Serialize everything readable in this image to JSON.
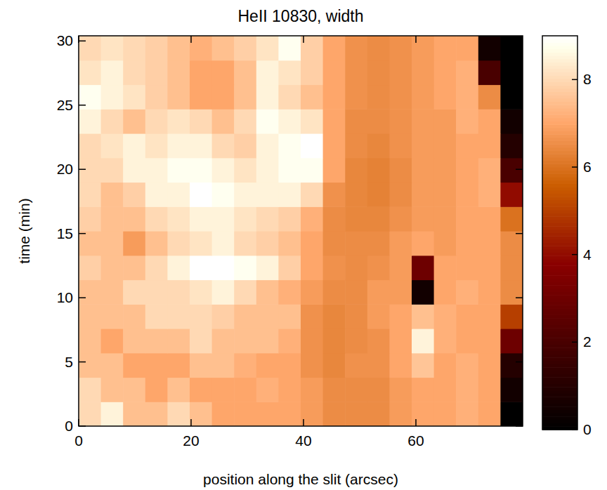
{
  "chart_data": {
    "type": "heatmap",
    "title": "HeII 10830, width",
    "x_label": "position along the slit (arcsec)",
    "y_label": "time (min)",
    "xlim": [
      0,
      79
    ],
    "ylim": [
      0,
      30.4
    ],
    "xticks": [
      0,
      20,
      40,
      60
    ],
    "yticks": [
      0,
      5,
      10,
      15,
      20,
      25,
      30
    ],
    "x_bins": [
      0,
      3.95,
      7.9,
      11.85,
      15.8,
      19.75,
      23.7,
      27.65,
      31.6,
      35.55,
      39.5,
      43.45,
      47.4,
      51.35,
      55.3,
      59.25,
      63.2,
      67.15,
      71.1,
      75.05,
      79
    ],
    "y_bins": [
      0,
      1.9,
      3.8,
      5.7,
      7.6,
      9.5,
      11.4,
      13.3,
      15.2,
      17.1,
      19,
      20.9,
      22.8,
      24.7,
      26.6,
      28.5,
      30.4
    ],
    "z": [
      [
        8,
        8.5,
        7.5,
        7.5,
        8,
        7.5,
        7,
        7,
        7,
        7,
        6.8,
        6.5,
        6.5,
        6.5,
        6.8,
        7,
        7,
        7.2,
        7,
        0
      ],
      [
        8,
        7.5,
        7.5,
        7,
        7.5,
        7,
        7,
        7,
        7.2,
        7,
        6.8,
        6.5,
        6.5,
        6.5,
        6.8,
        7,
        7,
        7.2,
        7,
        0.5
      ],
      [
        7.5,
        7.5,
        7,
        7,
        7,
        7.5,
        7.5,
        7.2,
        7,
        7,
        6.6,
        6.4,
        6.6,
        6.6,
        7,
        7.6,
        7,
        7.2,
        7,
        1
      ],
      [
        7.5,
        7,
        7.5,
        7.5,
        7.5,
        8,
        7.5,
        7.5,
        7.5,
        7.2,
        6.6,
        6.4,
        6.5,
        6.6,
        7,
        8.5,
        7.2,
        7,
        7,
        3
      ],
      [
        7.5,
        7.5,
        7.5,
        8,
        8,
        8,
        7.8,
        7.5,
        7.5,
        7.5,
        6.6,
        6.4,
        6.5,
        6.8,
        7,
        7.5,
        7.2,
        7,
        7,
        5
      ],
      [
        7.5,
        7.5,
        8,
        8,
        8,
        8.2,
        8.5,
        8,
        7.5,
        7.2,
        6.8,
        6.5,
        6.5,
        6.8,
        6.8,
        0.5,
        7,
        7.2,
        7,
        6.5
      ],
      [
        7.8,
        7.5,
        7.5,
        8,
        8.5,
        9,
        9,
        8.8,
        8.5,
        7.8,
        7,
        6.6,
        6.5,
        6.6,
        6.8,
        3,
        7,
        7,
        7,
        6.5
      ],
      [
        7.5,
        7.5,
        6.8,
        7.5,
        8,
        8.2,
        8.5,
        8,
        7.8,
        7.5,
        7,
        6.5,
        6.5,
        6.5,
        6.8,
        7,
        6.8,
        7,
        7,
        6.5
      ],
      [
        7.8,
        7.5,
        7.5,
        8,
        8.2,
        8.5,
        8.5,
        8.2,
        8,
        7.8,
        7.2,
        6.5,
        6.4,
        6.4,
        6.6,
        6.8,
        6.8,
        7,
        7,
        6
      ],
      [
        8,
        7.5,
        7.8,
        8.5,
        8.5,
        9,
        8.8,
        8.5,
        8.5,
        8.5,
        8,
        6.6,
        6.4,
        6.3,
        6.5,
        6.8,
        6.8,
        7,
        7.2,
        4
      ],
      [
        8,
        8,
        8.5,
        8.5,
        8.8,
        8.8,
        8.5,
        8.2,
        8.5,
        8.8,
        8.8,
        7,
        6.4,
        6.3,
        6.5,
        6.8,
        6.8,
        7,
        7.2,
        2
      ],
      [
        8,
        8.2,
        8.5,
        8.2,
        8.5,
        8.5,
        8,
        7.8,
        8.5,
        8.8,
        9,
        7,
        6.5,
        6.4,
        6.6,
        6.8,
        6.8,
        7,
        7,
        1
      ],
      [
        8.5,
        8,
        7.5,
        8,
        8.2,
        8,
        7.5,
        8,
        8.8,
        8.5,
        8.2,
        7,
        6.5,
        6.5,
        6.6,
        6.8,
        6.8,
        7.2,
        7,
        0.5
      ],
      [
        8.8,
        8.5,
        8.2,
        7.8,
        7.5,
        7,
        7,
        7.5,
        8.5,
        8,
        7.5,
        7,
        6.6,
        6.5,
        6.6,
        6.8,
        7,
        7.2,
        6.5,
        0
      ],
      [
        8.2,
        8.5,
        8,
        7.8,
        7.5,
        7,
        7,
        7.5,
        8.5,
        8.2,
        7.8,
        7,
        6.6,
        6.5,
        6.6,
        6.8,
        7,
        7.2,
        2,
        0
      ],
      [
        8,
        8.2,
        8,
        7.8,
        7.5,
        7.2,
        7.5,
        7.8,
        8.2,
        8.8,
        7.8,
        7,
        6.6,
        6.5,
        6.6,
        6.8,
        7,
        7,
        0.5,
        0
      ]
    ],
    "colorbar": {
      "range": [
        0,
        9
      ],
      "ticks": [
        0,
        2,
        4,
        6,
        8
      ]
    }
  }
}
